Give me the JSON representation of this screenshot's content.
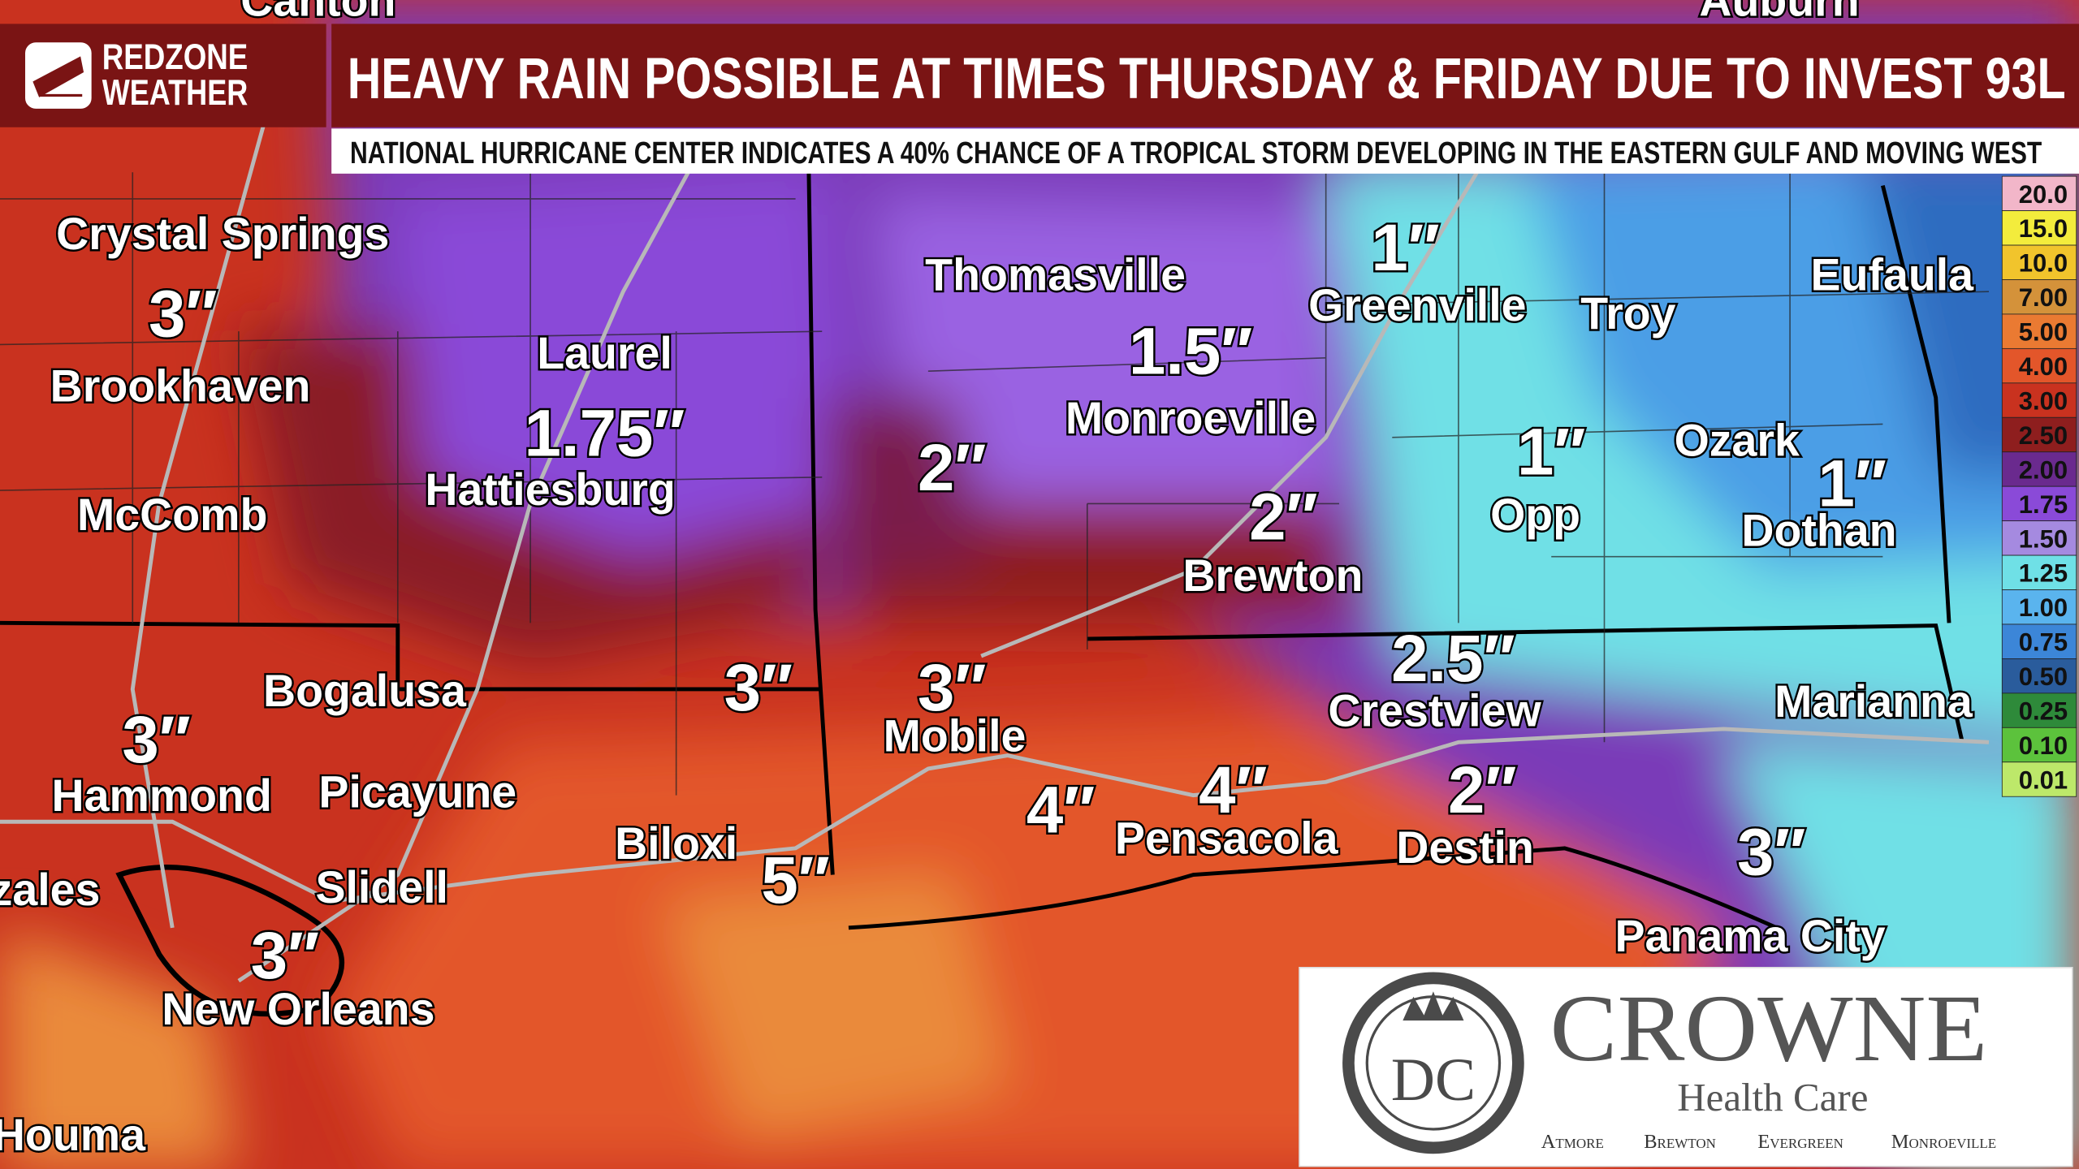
{
  "header": {
    "brand": [
      "REDZONE",
      "WEATHER"
    ],
    "title": "HEAVY RAIN POSSIBLE AT TIMES THURSDAY & FRIDAY DUE TO INVEST 93L",
    "subtitle": "NATIONAL HURRICANE CENTER INDICATES A 40% CHANCE OF A TROPICAL STORM DEVELOPING IN THE EASTERN GULF AND MOVING WEST"
  },
  "legend": [
    {
      "label": "20.0",
      "color": "#f2b6c9"
    },
    {
      "label": "15.0",
      "color": "#f3ec3c"
    },
    {
      "label": "10.0",
      "color": "#f1c42c"
    },
    {
      "label": "7.00",
      "color": "#d4923a"
    },
    {
      "label": "5.00",
      "color": "#ea7a32"
    },
    {
      "label": "4.00",
      "color": "#e3562a"
    },
    {
      "label": "3.00",
      "color": "#c9321f"
    },
    {
      "label": "2.50",
      "color": "#8e1e1e"
    },
    {
      "label": "2.00",
      "color": "#6a2a8e"
    },
    {
      "label": "1.75",
      "color": "#8a4ad8"
    },
    {
      "label": "1.50",
      "color": "#a58ae0"
    },
    {
      "label": "1.25",
      "color": "#6fe0e6"
    },
    {
      "label": "1.00",
      "color": "#5ab4ee"
    },
    {
      "label": "0.75",
      "color": "#3c86d8"
    },
    {
      "label": "0.50",
      "color": "#2a5c9c"
    },
    {
      "label": "0.25",
      "color": "#2e8a3a"
    },
    {
      "label": "0.10",
      "color": "#5cc23c"
    },
    {
      "label": "0.01",
      "color": "#bde86a"
    }
  ],
  "cities": [
    "Canton",
    "Auburn",
    "Crystal Springs",
    "Brookhaven",
    "McComb",
    "Bogalusa",
    "Hammond",
    "Picayune",
    "Slidell",
    "zales",
    "New Orleans",
    "Houma",
    "Laurel",
    "Hattiesburg",
    "Biloxi",
    "Thomasville",
    "Monroeville",
    "Brewton",
    "Mobile",
    "Pensacola",
    "Greenville",
    "Troy",
    "Eufaula",
    "Ozark",
    "Opp",
    "Dothan",
    "Crestview",
    "Destin",
    "Marianna",
    "Panama City"
  ],
  "amounts": [
    "3″",
    "3″",
    "3″",
    "1.75″",
    "3″",
    "5″",
    "2″",
    "3″",
    "4″",
    "4″",
    "1.5″",
    "1″",
    "2″",
    "1″",
    "2.5″",
    "2″",
    "1″",
    "3″"
  ],
  "ad": {
    "monogram": "DC",
    "name": "CROWNE",
    "tagline": "Health Care",
    "locations": [
      "Atmore",
      "Brewton",
      "Evergreen",
      "Monroeville"
    ]
  }
}
